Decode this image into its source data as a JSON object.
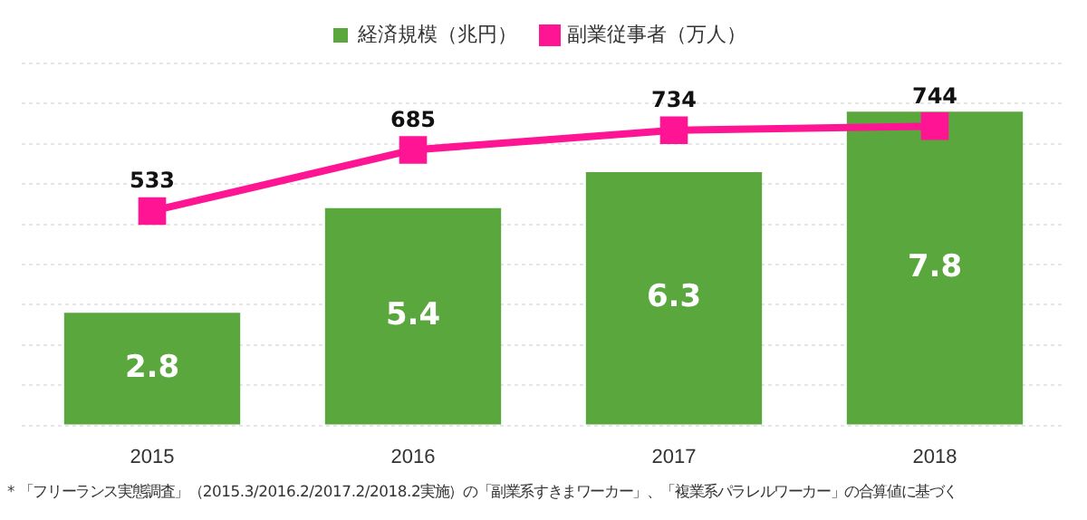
{
  "chart_data": {
    "type": "bar",
    "categories": [
      "2015",
      "2016",
      "2017",
      "2018"
    ],
    "series": [
      {
        "name": "経済規模（兆円）",
        "color": "#5aa73e",
        "values": [
          2.8,
          5.4,
          6.3,
          7.8
        ]
      },
      {
        "name": "副業従事者（万人）",
        "type": "line",
        "axis": "y2",
        "color": "#ff1493",
        "values": [
          533,
          685,
          734,
          744
        ],
        "marker": "square"
      }
    ],
    "ylim": [
      0,
      9
    ],
    "yticks": [
      0,
      1,
      2,
      3,
      4,
      5,
      6,
      7,
      8,
      9
    ],
    "y2lim": [
      0,
      900
    ],
    "tick_labels": "x",
    "grid": "y",
    "legend": "top",
    "data_labels": true,
    "annotations": [
      "* 「フリーランス実態調査」（2015.3/2016.2/2017.2/2018.2実施）の「副業系すきまワーカー」、「複業系パラレルワーカー」の合算値に基づく"
    ]
  }
}
